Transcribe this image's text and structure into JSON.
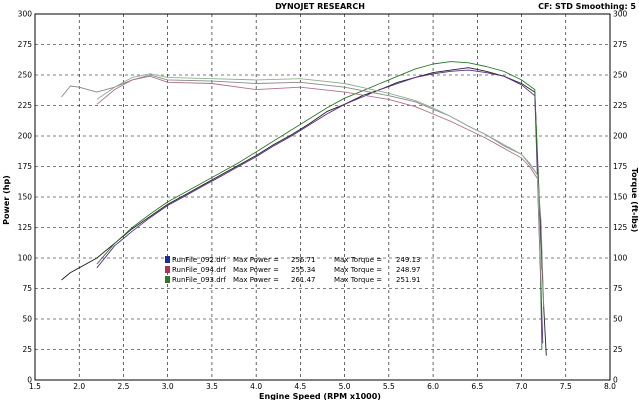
{
  "header": {
    "title": "DYNOJET RESEARCH",
    "settings": "CF: STD  Smoothing: 5"
  },
  "chart_data": {
    "type": "line",
    "title": "DYNOJET RESEARCH",
    "xlabel": "Engine Speed (RPM x1000)",
    "ylabel_left": "Power (hp)",
    "ylabel_right": "Torque (ft-lbs)",
    "xlim": [
      1.5,
      8.0
    ],
    "ylim": [
      0,
      300
    ],
    "x_ticks": [
      "1.5",
      "2.0",
      "2.5",
      "3.0",
      "3.5",
      "4.0",
      "4.5",
      "5.0",
      "5.5",
      "6.0",
      "6.5",
      "7.0",
      "7.5",
      "8.0"
    ],
    "y_ticks": [
      "0",
      "25",
      "50",
      "75",
      "100",
      "125",
      "150",
      "175",
      "200",
      "225",
      "250",
      "275",
      "300"
    ],
    "grid": true,
    "legend": [
      {
        "file": "RunFile_092.drf",
        "power_label": "Max Power =",
        "max_power": "256.71",
        "torque_label": "Max Torque =",
        "max_torque": "249.13",
        "color": "#1a2a9a"
      },
      {
        "file": "RunFile_094.drf",
        "power_label": "Max Power =",
        "max_power": "255.34",
        "torque_label": "Max Torque =",
        "max_torque": "248.97",
        "color": "#b0305a"
      },
      {
        "file": "RunFile_093.drf",
        "power_label": "Max Power =",
        "max_power": "261.47",
        "torque_label": "Max Torque =",
        "max_torque": "251.91",
        "color": "#2a7a2a"
      }
    ],
    "series": [
      {
        "kind": "power",
        "color": "#222222",
        "x": [
          1.8,
          1.9,
          2.0,
          2.2,
          2.4,
          2.6,
          2.8,
          3.0,
          3.2,
          3.4,
          3.6,
          3.8,
          4.0,
          4.2,
          4.4,
          4.6,
          4.8,
          5.0,
          5.2,
          5.4,
          5.6,
          5.8,
          6.0,
          6.2,
          6.4,
          6.6,
          6.8,
          7.0,
          7.15,
          7.2,
          7.25,
          7.28
        ],
        "y": [
          82,
          88,
          92,
          100,
          112,
          124,
          134,
          144,
          152,
          160,
          168,
          176,
          184,
          193,
          201,
          210,
          220,
          226,
          233,
          238,
          244,
          248,
          252,
          254,
          256,
          253,
          249,
          243,
          236,
          150,
          60,
          20
        ]
      },
      {
        "kind": "power",
        "color": "#5a2a8a",
        "x": [
          2.2,
          2.4,
          2.6,
          2.8,
          3.0,
          3.2,
          3.4,
          3.6,
          3.8,
          4.0,
          4.2,
          4.4,
          4.6,
          4.8,
          5.0,
          5.2,
          5.4,
          5.6,
          5.8,
          6.0,
          6.2,
          6.4,
          6.6,
          6.8,
          7.0,
          7.15,
          7.2,
          7.24
        ],
        "y": [
          92,
          110,
          122,
          133,
          143,
          151,
          159,
          167,
          175,
          183,
          192,
          200,
          209,
          218,
          226,
          232,
          238,
          243,
          248,
          251,
          253,
          254,
          252,
          249,
          242,
          233,
          120,
          30
        ]
      },
      {
        "kind": "power",
        "color": "#2a7a2a",
        "x": [
          2.2,
          2.4,
          2.6,
          2.8,
          3.0,
          3.2,
          3.4,
          3.6,
          3.8,
          4.0,
          4.2,
          4.4,
          4.6,
          4.8,
          5.0,
          5.2,
          5.4,
          5.6,
          5.8,
          6.0,
          6.2,
          6.4,
          6.6,
          6.8,
          7.0,
          7.15,
          7.2,
          7.23
        ],
        "y": [
          95,
          112,
          125,
          136,
          146,
          154,
          162,
          170,
          178,
          187,
          196,
          205,
          214,
          223,
          231,
          237,
          243,
          249,
          255,
          259,
          261,
          260,
          257,
          253,
          246,
          238,
          140,
          25
        ]
      },
      {
        "kind": "torque",
        "color": "#888888",
        "x": [
          1.8,
          1.9,
          2.0,
          2.2,
          2.4,
          2.6,
          2.8,
          3.0,
          3.5,
          4.0,
          4.5,
          5.0,
          5.5,
          5.8,
          6.0,
          6.2,
          6.4,
          6.6,
          6.8,
          7.0,
          7.1,
          7.18,
          7.22,
          7.25
        ],
        "y": [
          232,
          241,
          240,
          236,
          240,
          246,
          250,
          246,
          245,
          243,
          244,
          240,
          233,
          228,
          222,
          216,
          208,
          201,
          192,
          185,
          176,
          168,
          130,
          60
        ]
      },
      {
        "kind": "torque",
        "color": "#b07090",
        "x": [
          2.2,
          2.4,
          2.6,
          2.8,
          3.0,
          3.5,
          4.0,
          4.5,
          5.0,
          5.5,
          5.8,
          6.0,
          6.2,
          6.4,
          6.6,
          6.8,
          7.0,
          7.1,
          7.18,
          7.22
        ],
        "y": [
          226,
          238,
          246,
          249,
          244,
          243,
          238,
          240,
          236,
          230,
          224,
          218,
          212,
          205,
          198,
          190,
          182,
          174,
          165,
          80
        ]
      },
      {
        "kind": "torque",
        "color": "#8fb08f",
        "x": [
          2.2,
          2.4,
          2.6,
          2.8,
          3.0,
          3.5,
          4.0,
          4.5,
          5.0,
          5.5,
          5.8,
          6.0,
          6.2,
          6.4,
          6.6,
          6.8,
          7.0,
          7.1,
          7.18,
          7.22
        ],
        "y": [
          230,
          240,
          248,
          251,
          248,
          247,
          246,
          247,
          243,
          235,
          229,
          223,
          216,
          208,
          201,
          193,
          185,
          177,
          168,
          90
        ]
      }
    ]
  }
}
